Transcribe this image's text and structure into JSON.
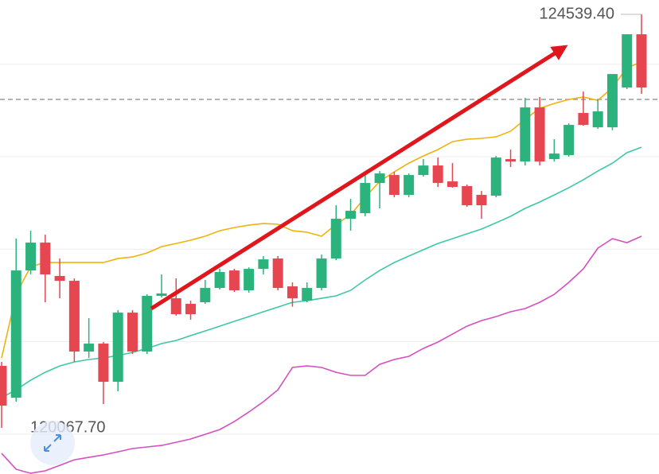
{
  "chart_data": {
    "type": "candlestick",
    "open": [
      120738,
      120394,
      121770,
      122071,
      121710,
      121658,
      120893,
      120979,
      120566,
      121314,
      120893,
      121495,
      121469,
      121409,
      121426,
      121581,
      121770,
      121555,
      121787,
      121899,
      121598,
      121443,
      121581,
      121899,
      122329,
      122389,
      122716,
      122802,
      122587,
      122802,
      122905,
      122733,
      122682,
      122587,
      122578,
      122974,
      122948,
      123533,
      122974,
      123017,
      123473,
      123318,
      123318,
      123748,
      124324
    ],
    "high": [
      120781,
      122114,
      122200,
      122157,
      121899,
      121684,
      121254,
      120996,
      121340,
      121340,
      121512,
      121727,
      121684,
      121443,
      121667,
      121787,
      121787,
      121804,
      121925,
      121925,
      121641,
      121641,
      121942,
      122475,
      122544,
      122819,
      122845,
      122836,
      122819,
      122974,
      122991,
      122931,
      122699,
      122630,
      123008,
      123077,
      123636,
      123645,
      123189,
      123361,
      123705,
      123619,
      123894,
      124324,
      124539.4
    ],
    "low": [
      120067.7,
      120351,
      121727,
      121426,
      121469,
      120781,
      120824,
      120325,
      120463,
      120867,
      120867,
      121478,
      121280,
      121237,
      121409,
      121564,
      121538,
      121529,
      121727,
      121555,
      121378,
      121426,
      121555,
      121882,
      122200,
      122355,
      122441,
      122561,
      122561,
      122785,
      122673,
      122664,
      122458,
      122329,
      122561,
      122888,
      122905,
      122905,
      122948,
      123000,
      123335,
      123301,
      123286,
      123731,
      123679
    ],
    "close": [
      120308,
      121770,
      122071,
      121727,
      121658,
      120893,
      120979,
      120566,
      121314,
      120893,
      121495,
      121521,
      121297,
      121297,
      121581,
      121753,
      121555,
      121787,
      121890,
      121581,
      121469,
      121581,
      121899,
      122329,
      122415,
      122716,
      122819,
      122587,
      122802,
      122905,
      122716,
      122673,
      122475,
      122475,
      122991,
      122948,
      123533,
      122948,
      123034,
      123344,
      123344,
      123490,
      123894,
      124324,
      123748
    ],
    "up_color": "#2cb37d",
    "down_color": "#e5464f",
    "lines": [
      {
        "color": "#efb30c",
        "values": [
          120824,
          121512,
          121813,
          121856,
          121856,
          121856,
          121856,
          121856,
          121899,
          121916,
          121959,
          122028,
          122062,
          122097,
          122140,
          122200,
          122234,
          122260,
          122277,
          122269,
          122200,
          122183,
          122140,
          122269,
          122372,
          122561,
          122733,
          122836,
          122931,
          123008,
          123077,
          123163,
          123189,
          123198,
          123215,
          123275,
          123404,
          123524,
          123576,
          123619,
          123645,
          123610,
          123748,
          123963,
          124023
        ]
      },
      {
        "color": "#3cc8a6",
        "values": [
          120394,
          120480,
          120583,
          120669,
          120738,
          120781,
          120807,
          120824,
          120850,
          120884,
          120927,
          120979,
          121013,
          121065,
          121116,
          121168,
          121220,
          121271,
          121323,
          121374,
          121426,
          121443,
          121469,
          121495,
          121555,
          121667,
          121770,
          121856,
          121925,
          121994,
          122062,
          122114,
          122166,
          122218,
          122286,
          122355,
          122441,
          122510,
          122587,
          122664,
          122750,
          122845,
          122931,
          123043,
          123103
        ]
      },
      {
        "color": "#d64fbf",
        "values": [
          119792,
          119620,
          119577,
          119603,
          119663,
          119723,
          119749,
          119775,
          119809,
          119844,
          119861,
          119878,
          119912,
          119947,
          119998,
          120050,
          120136,
          120239,
          120351,
          120480,
          120721,
          120738,
          120721,
          120669,
          120635,
          120635,
          120755,
          120807,
          120841,
          120927,
          120996,
          121082,
          121168,
          121228,
          121271,
          121323,
          121358,
          121426,
          121512,
          121641,
          121787,
          122011,
          122114,
          122071,
          122140
        ]
      }
    ],
    "ylim": [
      119568.9,
      124694.5
    ],
    "gridlines": [
      124000,
      123000,
      122000,
      121000,
      120000
    ],
    "reference_line": 123619,
    "labels": [
      {
        "value": 124539.4,
        "label": "124539.40"
      },
      {
        "value": 120067.7,
        "label": "120067.70"
      }
    ]
  }
}
